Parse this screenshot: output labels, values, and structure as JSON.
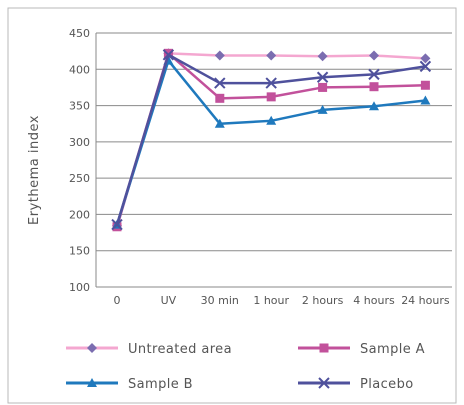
{
  "chart_data": {
    "type": "line",
    "title": "",
    "xlabel": "",
    "ylabel": "Erythema index",
    "ylim": [
      100,
      450
    ],
    "yticks": [
      100,
      150,
      200,
      250,
      300,
      350,
      400,
      450
    ],
    "grid": true,
    "legend_position": "bottom",
    "categories": [
      "0",
      "UV",
      "30 min",
      "1 hour",
      "2 hours",
      "4 hours",
      "24 hours"
    ],
    "series": [
      {
        "name": "Untreated area",
        "color": "#f4a7d0",
        "marker": "diamond",
        "marker_color": "#7b6db0",
        "values": [
          185,
          422,
          419,
          419,
          418,
          419,
          415
        ]
      },
      {
        "name": "Sample A",
        "color": "#c2519b",
        "marker": "square",
        "marker_color": "#c2519b",
        "values": [
          183,
          422,
          360,
          362,
          375,
          376,
          378
        ]
      },
      {
        "name": "Sample B",
        "color": "#1f79bd",
        "marker": "triangle",
        "marker_color": "#1f79bd",
        "values": [
          186,
          412,
          325,
          329,
          344,
          349,
          357
        ]
      },
      {
        "name": "Placebo",
        "color": "#4f519c",
        "marker": "x",
        "marker_color": "#4f519c",
        "values": [
          186,
          420,
          381,
          381,
          389,
          393,
          404
        ]
      }
    ]
  }
}
